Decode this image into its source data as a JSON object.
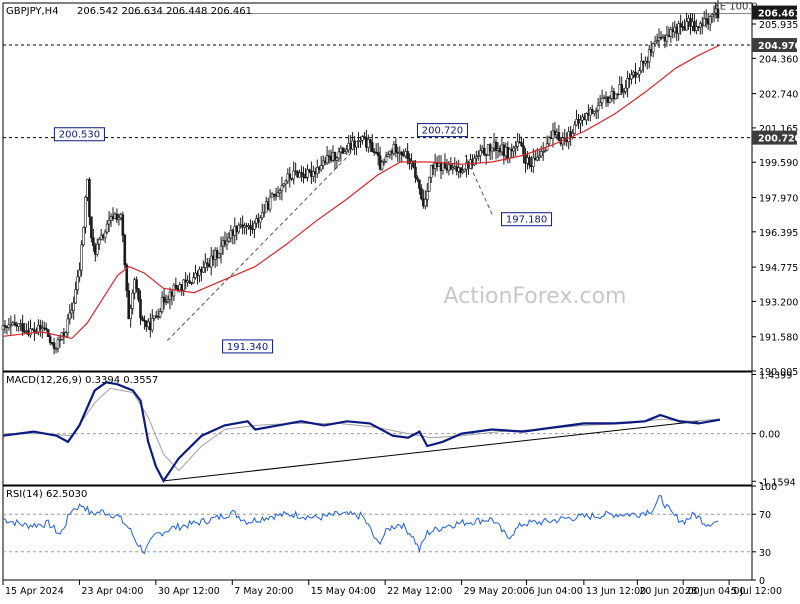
{
  "header": {
    "symbol": "GBPJPY,H4",
    "ohlc": "206.542 206.634 206.448 206.461"
  },
  "watermark": "ActionForex.com",
  "chart_data": [
    {
      "type": "candlestick",
      "title": "GBPJPY,H4",
      "ylim": [
        190.005,
        206.9
      ],
      "y_ticks": [
        "190.005",
        "191.580",
        "193.200",
        "194.775",
        "196.395",
        "197.970",
        "199.590",
        "201.165",
        "202.740",
        "204.360",
        "205.935"
      ],
      "price_tags": [
        {
          "value": "206.461",
          "style": "current"
        },
        {
          "value": "204.970",
          "style": "level"
        },
        {
          "value": "200.720",
          "style": "level"
        }
      ],
      "horizontal_levels": [
        204.97,
        200.72
      ],
      "fe_label": "FE 100.0",
      "fe_level": 206.461,
      "annotations": [
        {
          "text": "200.530",
          "x": 1,
          "value": 200.53
        },
        {
          "text": "191.340",
          "x": 3.2,
          "value": 191.34
        },
        {
          "text": "200.720",
          "x": 5.75,
          "value": 200.72
        },
        {
          "text": "197.180",
          "x": 6.85,
          "value": 197.18
        }
      ],
      "close_series": [
        [
          0.0,
          191.9
        ],
        [
          0.2,
          192.1
        ],
        [
          0.4,
          191.8
        ],
        [
          0.55,
          192.0
        ],
        [
          0.65,
          191.0
        ],
        [
          0.8,
          191.7
        ],
        [
          0.9,
          192.8
        ],
        [
          1.0,
          194.6
        ],
        [
          1.05,
          196.5
        ],
        [
          1.1,
          199.0
        ],
        [
          1.15,
          196.0
        ],
        [
          1.2,
          195.5
        ],
        [
          1.35,
          196.5
        ],
        [
          1.45,
          197.2
        ],
        [
          1.55,
          197.0
        ],
        [
          1.65,
          192.0
        ],
        [
          1.72,
          194.2
        ],
        [
          1.8,
          192.5
        ],
        [
          1.9,
          192.0
        ],
        [
          2.0,
          192.5
        ],
        [
          2.1,
          193.3
        ],
        [
          2.25,
          193.8
        ],
        [
          2.4,
          194.0
        ],
        [
          2.6,
          194.6
        ],
        [
          2.8,
          195.4
        ],
        [
          2.95,
          196.2
        ],
        [
          3.1,
          196.8
        ],
        [
          3.25,
          196.5
        ],
        [
          3.4,
          197.3
        ],
        [
          3.55,
          198.1
        ],
        [
          3.7,
          198.8
        ],
        [
          3.85,
          199.1
        ],
        [
          4.0,
          199.0
        ],
        [
          4.2,
          199.6
        ],
        [
          4.4,
          200.0
        ],
        [
          4.55,
          200.3
        ],
        [
          4.7,
          200.6
        ],
        [
          4.85,
          200.2
        ],
        [
          4.95,
          199.3
        ],
        [
          5.05,
          200.0
        ],
        [
          5.15,
          200.3
        ],
        [
          5.3,
          199.8
        ],
        [
          5.4,
          199.0
        ],
        [
          5.5,
          197.6
        ],
        [
          5.6,
          199.3
        ],
        [
          5.75,
          199.4
        ],
        [
          5.9,
          199.2
        ],
        [
          6.1,
          199.5
        ],
        [
          6.3,
          200.1
        ],
        [
          6.45,
          200.3
        ],
        [
          6.6,
          200.0
        ],
        [
          6.75,
          200.4
        ],
        [
          6.9,
          199.3
        ],
        [
          7.05,
          200.2
        ],
        [
          7.2,
          200.8
        ],
        [
          7.35,
          200.6
        ],
        [
          7.5,
          201.3
        ],
        [
          7.65,
          201.8
        ],
        [
          7.8,
          202.2
        ],
        [
          7.95,
          202.6
        ],
        [
          8.1,
          203.0
        ],
        [
          8.25,
          203.6
        ],
        [
          8.4,
          204.3
        ],
        [
          8.55,
          205.0
        ],
        [
          8.7,
          205.5
        ],
        [
          8.85,
          205.8
        ],
        [
          9.0,
          206.0
        ],
        [
          9.1,
          205.7
        ],
        [
          9.2,
          206.1
        ],
        [
          9.3,
          206.4
        ],
        [
          9.38,
          206.46
        ]
      ],
      "ma_series": [
        [
          0.0,
          191.6
        ],
        [
          0.5,
          191.8
        ],
        [
          0.9,
          191.5
        ],
        [
          1.1,
          192.2
        ],
        [
          1.3,
          193.3
        ],
        [
          1.5,
          194.4
        ],
        [
          1.65,
          194.8
        ],
        [
          1.85,
          194.5
        ],
        [
          2.1,
          193.8
        ],
        [
          2.5,
          193.6
        ],
        [
          2.9,
          194.2
        ],
        [
          3.3,
          194.8
        ],
        [
          3.7,
          195.8
        ],
        [
          4.1,
          196.9
        ],
        [
          4.5,
          197.9
        ],
        [
          4.9,
          199.0
        ],
        [
          5.2,
          199.6
        ],
        [
          5.6,
          199.6
        ],
        [
          6.0,
          199.5
        ],
        [
          6.4,
          199.6
        ],
        [
          6.8,
          199.9
        ],
        [
          7.2,
          200.4
        ],
        [
          7.6,
          201.0
        ],
        [
          8.0,
          201.8
        ],
        [
          8.4,
          202.8
        ],
        [
          8.8,
          203.9
        ],
        [
          9.1,
          204.5
        ],
        [
          9.38,
          204.97
        ]
      ],
      "trendlines": [
        [
          [
            2.15,
            191.4
          ],
          [
            4.55,
            200.0
          ]
        ],
        [
          [
            6.4,
            197.2
          ],
          [
            6.05,
            199.9
          ]
        ]
      ]
    },
    {
      "type": "line",
      "title": "MACD(12,26,9) 0.3394 0.3557",
      "ylim": [
        -1.25,
        1.5
      ],
      "y_ticks": [
        "1.4399",
        "0.00",
        "-1.1594"
      ],
      "zero_line": 0,
      "series": [
        {
          "name": "MACD",
          "values": [
            [
              0.0,
              -0.05
            ],
            [
              0.4,
              0.05
            ],
            [
              0.7,
              -0.05
            ],
            [
              0.85,
              -0.2
            ],
            [
              1.0,
              0.2
            ],
            [
              1.2,
              1.05
            ],
            [
              1.35,
              1.25
            ],
            [
              1.5,
              1.2
            ],
            [
              1.7,
              1.05
            ],
            [
              1.8,
              0.8
            ],
            [
              1.9,
              -0.2
            ],
            [
              2.0,
              -0.8
            ],
            [
              2.1,
              -1.15
            ],
            [
              2.3,
              -0.6
            ],
            [
              2.6,
              -0.05
            ],
            [
              2.9,
              0.2
            ],
            [
              3.2,
              0.3
            ],
            [
              3.3,
              0.1
            ],
            [
              3.6,
              0.2
            ],
            [
              3.9,
              0.3
            ],
            [
              4.2,
              0.2
            ],
            [
              4.5,
              0.3
            ],
            [
              4.8,
              0.25
            ],
            [
              5.1,
              -0.05
            ],
            [
              5.3,
              -0.1
            ],
            [
              5.45,
              0.05
            ],
            [
              5.55,
              -0.3
            ],
            [
              5.75,
              -0.2
            ],
            [
              6.0,
              0.0
            ],
            [
              6.4,
              0.1
            ],
            [
              6.8,
              0.05
            ],
            [
              7.2,
              0.15
            ],
            [
              7.6,
              0.25
            ],
            [
              8.0,
              0.25
            ],
            [
              8.4,
              0.3
            ],
            [
              8.6,
              0.45
            ],
            [
              8.85,
              0.3
            ],
            [
              9.1,
              0.25
            ],
            [
              9.38,
              0.34
            ]
          ]
        },
        {
          "name": "Signal",
          "values": [
            [
              0.0,
              0.0
            ],
            [
              0.5,
              0.0
            ],
            [
              0.9,
              -0.05
            ],
            [
              1.2,
              0.75
            ],
            [
              1.4,
              1.1
            ],
            [
              1.7,
              1.0
            ],
            [
              1.9,
              0.4
            ],
            [
              2.1,
              -0.5
            ],
            [
              2.3,
              -0.9
            ],
            [
              2.6,
              -0.3
            ],
            [
              2.9,
              0.1
            ],
            [
              3.3,
              0.2
            ],
            [
              3.8,
              0.25
            ],
            [
              4.4,
              0.25
            ],
            [
              4.9,
              0.15
            ],
            [
              5.3,
              0.0
            ],
            [
              5.6,
              -0.1
            ],
            [
              6.0,
              -0.05
            ],
            [
              6.5,
              0.05
            ],
            [
              7.0,
              0.1
            ],
            [
              7.6,
              0.2
            ],
            [
              8.2,
              0.25
            ],
            [
              8.6,
              0.35
            ],
            [
              9.0,
              0.3
            ],
            [
              9.38,
              0.3557
            ]
          ]
        }
      ],
      "trendline": [
        [
          2.1,
          -1.15
        ],
        [
          9.1,
          0.3
        ]
      ]
    },
    {
      "type": "line",
      "title": "RSI(14) 62.5030",
      "ylim": [
        0,
        100
      ],
      "y_ticks": [
        "100",
        "70",
        "30",
        "0"
      ],
      "levels": [
        70,
        30
      ],
      "series": [
        {
          "name": "RSI",
          "values": [
            [
              0.0,
              65
            ],
            [
              0.3,
              58
            ],
            [
              0.6,
              60
            ],
            [
              0.75,
              48
            ],
            [
              0.9,
              75
            ],
            [
              1.05,
              80
            ],
            [
              1.15,
              70
            ],
            [
              1.3,
              73
            ],
            [
              1.5,
              68
            ],
            [
              1.65,
              55
            ],
            [
              1.75,
              40
            ],
            [
              1.85,
              30
            ],
            [
              2.0,
              48
            ],
            [
              2.2,
              55
            ],
            [
              2.5,
              60
            ],
            [
              2.8,
              66
            ],
            [
              3.0,
              72
            ],
            [
              3.2,
              62
            ],
            [
              3.5,
              68
            ],
            [
              3.8,
              70
            ],
            [
              4.1,
              66
            ],
            [
              4.4,
              70
            ],
            [
              4.7,
              68
            ],
            [
              4.8,
              55
            ],
            [
              4.9,
              38
            ],
            [
              5.05,
              55
            ],
            [
              5.2,
              60
            ],
            [
              5.35,
              48
            ],
            [
              5.45,
              32
            ],
            [
              5.55,
              50
            ],
            [
              5.8,
              58
            ],
            [
              6.1,
              62
            ],
            [
              6.4,
              65
            ],
            [
              6.6,
              45
            ],
            [
              6.8,
              60
            ],
            [
              7.1,
              62
            ],
            [
              7.4,
              66
            ],
            [
              7.7,
              68
            ],
            [
              8.0,
              70
            ],
            [
              8.3,
              70
            ],
            [
              8.5,
              75
            ],
            [
              8.6,
              88
            ],
            [
              8.75,
              70
            ],
            [
              8.9,
              62
            ],
            [
              9.05,
              70
            ],
            [
              9.2,
              60
            ],
            [
              9.38,
              62.5
            ]
          ]
        }
      ]
    }
  ],
  "time_axis": {
    "range": [
      0,
      9.8
    ],
    "ticks": [
      {
        "label": "15 Apr 2024",
        "x": 0
      },
      {
        "label": "23 Apr 04:00",
        "x": 1
      },
      {
        "label": "30 Apr 12:00",
        "x": 2
      },
      {
        "label": "7 May 20:00",
        "x": 3
      },
      {
        "label": "15 May 04:00",
        "x": 4
      },
      {
        "label": "22 May 12:00",
        "x": 5
      },
      {
        "label": "29 May 20:00",
        "x": 6
      },
      {
        "label": "6 Jun 04:00",
        "x": 6.85
      },
      {
        "label": "13 Jun 12:00",
        "x": 7.6
      },
      {
        "label": "20 Jun 20:00",
        "x": 8.3
      },
      {
        "label": "28 Jun 04:00",
        "x": 8.9
      },
      {
        "label": "5 Jul 12:00",
        "x": 9.5
      }
    ]
  },
  "colors": {
    "candle": "#1a1a1a",
    "ma": "#d7262b",
    "macd": "#0d1a82",
    "signal": "#a0a0a0",
    "rsi": "#1e5fe0",
    "tag_current": "#1a1a1a",
    "tag_level": "#3d3d3d",
    "annotation_text": "#0d1a82"
  }
}
